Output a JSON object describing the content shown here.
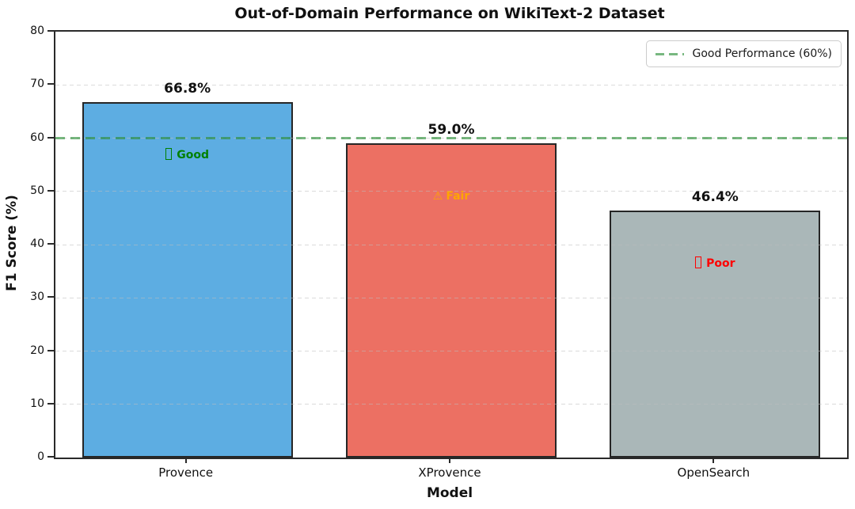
{
  "title": "Out-of-Domain Performance on WikiText-2 Dataset",
  "axes": {
    "xlabel": "Model",
    "ylabel": "F1 Score (%)",
    "y_ticks": [
      0,
      10,
      20,
      30,
      40,
      50,
      60,
      70,
      80
    ],
    "ylim": [
      0,
      80
    ]
  },
  "legend": {
    "label": "Good Performance (60%)",
    "line_color": "#268c32",
    "line_style": "dashed",
    "position": "upper right"
  },
  "chart_data": {
    "type": "bar",
    "title": "Out-of-Domain Performance on WikiText-2 Dataset",
    "xlabel": "Model",
    "ylabel": "F1 Score (%)",
    "ylim": [
      0,
      80
    ],
    "grid": true,
    "grid_style": "dashed",
    "legend_position": "upper right",
    "categories": [
      "Provence",
      "XProvence",
      "OpenSearch"
    ],
    "values": [
      66.8,
      59.0,
      46.4
    ],
    "value_labels": [
      "66.8%",
      "59.0%",
      "46.4%"
    ],
    "bar_colors": [
      "#5DADE2",
      "#EC7063",
      "#AAB7B8"
    ],
    "bar_edge_color": "#262626",
    "annotations": [
      {
        "text": "Good",
        "symbol": "tofu-box",
        "color": "#008000",
        "y_offset": -10
      },
      {
        "text": "Fair",
        "symbol": "warning-triangle",
        "color": "#FFA500",
        "y_offset": -10
      },
      {
        "text": "Poor",
        "symbol": "tofu-box",
        "color": "#FF0000",
        "y_offset": -10
      }
    ],
    "threshold_line": {
      "value": 60,
      "style": "dashed",
      "color": "#268c32",
      "label": "Good Performance (60%)"
    }
  }
}
